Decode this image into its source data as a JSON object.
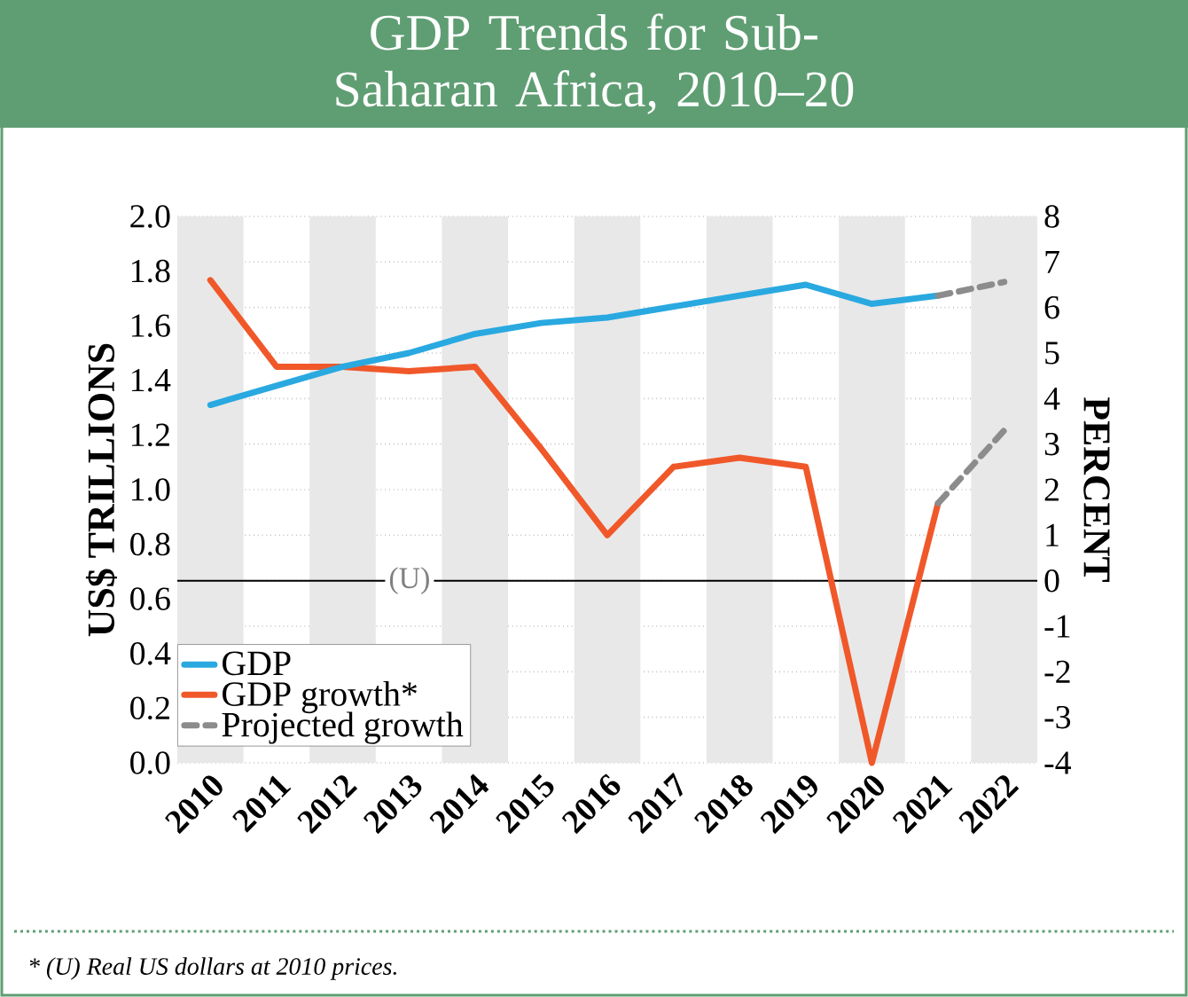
{
  "chart_data": {
    "type": "line",
    "title": "GDP Trends for Sub-Saharan Africa, 2010–20",
    "ylabel": "US$ TRILLIONS",
    "y2label": "PERCENT",
    "xlim": [
      2009.5,
      2022.5
    ],
    "xticks": [
      2010,
      2011,
      2012,
      2013,
      2014,
      2015,
      2016,
      2017,
      2018,
      2019,
      2020,
      2021,
      2022
    ],
    "ylim": [
      0,
      2
    ],
    "yticks": [
      {
        "value": 0,
        "label": "0.0"
      },
      0.2,
      0.4,
      0.6,
      0.8,
      {
        "value": 1,
        "label": "1.0"
      },
      1.2,
      1.4,
      1.6,
      1.8,
      {
        "value": 2,
        "label": "2.0"
      }
    ],
    "y2lim": [
      -4,
      8
    ],
    "y2ticks": [
      -4,
      -3,
      -2,
      -1,
      0,
      1,
      2,
      3,
      4,
      5,
      6,
      7,
      8
    ],
    "grid": "y2",
    "legend": "bottom left",
    "line_style": "solid",
    "series": [
      {
        "name": "GDP",
        "color": "#29a9e0",
        "x": [
          2010,
          2011,
          2012,
          2013,
          2014,
          2015,
          2016,
          2017,
          2018,
          2019,
          2020,
          2021
        ],
        "values": [
          1.31,
          1.38,
          1.45,
          1.5,
          1.57,
          1.61,
          1.63,
          1.67,
          1.71,
          1.75,
          1.68,
          1.71
        ]
      },
      {
        "name": "GDP growth*",
        "color": "#f0582a",
        "axis": "y2",
        "x": [
          2010,
          2011,
          2012,
          2013,
          2014,
          2015,
          2016,
          2017,
          2018,
          2019,
          2020,
          2021
        ],
        "values": [
          6.6,
          4.7,
          4.7,
          4.6,
          4.7,
          2.9,
          1.0,
          2.5,
          2.7,
          2.5,
          -4.0,
          1.7
        ]
      },
      {
        "name": "Projected growth",
        "color": "#8c8c8c",
        "axis": "y2",
        "line_style": "dashed",
        "x": [
          2021,
          2022
        ],
        "values": [
          1.7,
          3.3
        ]
      },
      {
        "color": "#8c8c8c",
        "line_style": "dashed",
        "x": [
          2021,
          2022
        ],
        "values": [
          1.71,
          1.76
        ]
      }
    ],
    "ref_lines": [
      {
        "axis": "y2",
        "value": 0,
        "label": "(U)",
        "color": "#000000"
      }
    ],
    "bands": [
      {
        "axis": "x",
        "from": 2009.5,
        "to": 2010.5,
        "color": "#e8e8e8"
      },
      {
        "axis": "x",
        "from": 2011.5,
        "to": 2012.5,
        "color": "#e8e8e8"
      },
      {
        "axis": "x",
        "from": 2013.5,
        "to": 2014.5,
        "color": "#e8e8e8"
      },
      {
        "axis": "x",
        "from": 2015.5,
        "to": 2016.5,
        "color": "#e8e8e8"
      },
      {
        "axis": "x",
        "from": 2017.5,
        "to": 2018.5,
        "color": "#e8e8e8"
      },
      {
        "axis": "x",
        "from": 2019.5,
        "to": 2020.5,
        "color": "#e8e8e8"
      },
      {
        "axis": "x",
        "from": 2021.5,
        "to": 2022.5,
        "color": "#e8e8e8"
      }
    ],
    "annotations": [
      "* (U) Real US dollars at 2010 prices."
    ]
  }
}
